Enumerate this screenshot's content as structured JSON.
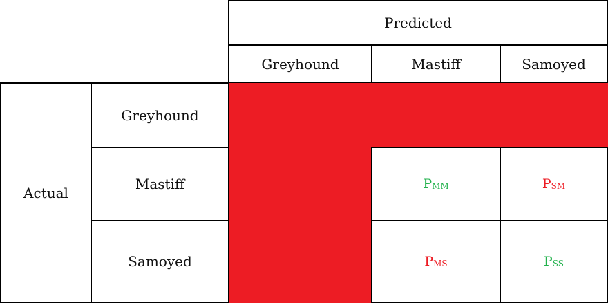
{
  "header": {
    "predicted_label": "Predicted",
    "actual_label": "Actual"
  },
  "columns": [
    "Greyhound",
    "Mastiff",
    "Samoyed"
  ],
  "rows": [
    "Greyhound",
    "Mastiff",
    "Samoyed"
  ],
  "cells": {
    "mastiff_mastiff": {
      "main": "P",
      "sub": "MM",
      "color": "#22b14c"
    },
    "mastiff_samoyed": {
      "main": "P",
      "sub": "SM",
      "color": "#ed1c24"
    },
    "samoyed_mastiff": {
      "main": "P",
      "sub": "MS",
      "color": "#ed1c24"
    },
    "samoyed_samoyed": {
      "main": "P",
      "sub": "SS",
      "color": "#22b14c"
    }
  },
  "colors": {
    "highlight": "#ed1c24",
    "correct": "#22b14c",
    "error": "#ed1c24"
  }
}
